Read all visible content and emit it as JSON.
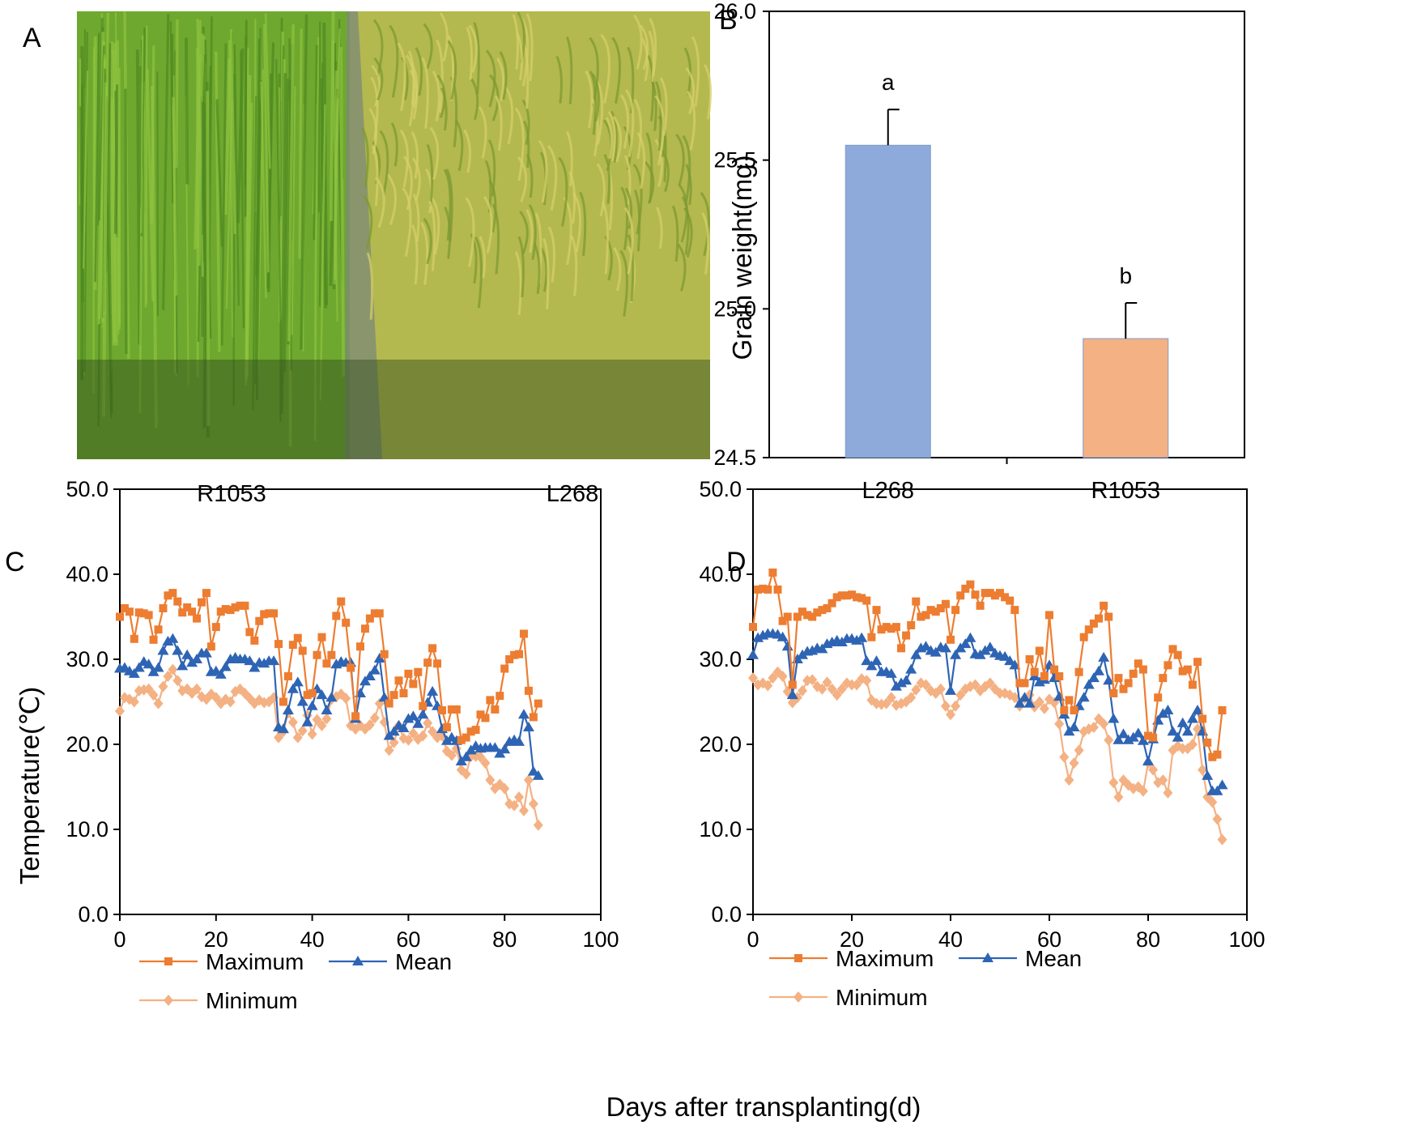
{
  "panels": {
    "a": {
      "label": "A",
      "caption": "Photograph of two rice plots in a paddy field; left plot bright green, right plot yellow-green with drooping panicles",
      "left_label": "R1053",
      "right_label": "L268",
      "colors": {
        "left": "#6ea82e",
        "right": "#b3b94e",
        "channel": "#7e8a78"
      }
    },
    "b": {
      "label": "B"
    },
    "c": {
      "label": "C"
    },
    "d": {
      "label": "D"
    }
  },
  "shared": {
    "xlabel": "Days after transplanting(d)"
  },
  "chart_data": [
    {
      "id": "B",
      "type": "bar",
      "title": "",
      "ylabel": "Grain weight(mg)",
      "xlabel": "",
      "categories": [
        "L268",
        "R1053"
      ],
      "values": [
        25.55,
        24.9
      ],
      "errors": [
        0.12,
        0.12
      ],
      "significance": [
        "a",
        "b"
      ],
      "colors": [
        "#8eaadb",
        "#f4b183"
      ],
      "ylim": [
        24.5,
        26.0
      ],
      "yticks": [
        "24.5",
        "25.0",
        "25.5",
        "26.0"
      ],
      "yticks_values": [
        24.5,
        25.0,
        25.5,
        26.0
      ]
    },
    {
      "id": "C",
      "type": "line",
      "ylabel": "Temperature(℃)",
      "xlabel": "Days after transplanting(d)",
      "xlim": [
        0,
        100
      ],
      "ylim": [
        0,
        50
      ],
      "xticks": [
        "0",
        "20",
        "40",
        "60",
        "80",
        "100"
      ],
      "xticks_values": [
        0,
        20,
        40,
        60,
        80,
        100
      ],
      "yticks": [
        "0.0",
        "10.0",
        "20.0",
        "30.0",
        "40.0",
        "50.0"
      ],
      "yticks_values": [
        0,
        10,
        20,
        30,
        40,
        50
      ],
      "legend": [
        "Maximum",
        "Mean",
        "Minimum"
      ],
      "series": [
        {
          "name": "Maximum",
          "color": "#ed7d31",
          "marker": "square",
          "values": [
            35.0,
            36.0,
            35.6,
            32.4,
            35.5,
            35.4,
            35.2,
            32.3,
            33.5,
            36.0,
            37.5,
            37.8,
            36.8,
            35.5,
            36.1,
            35.6,
            34.8,
            36.7,
            37.8,
            31.5,
            33.8,
            35.6,
            35.9,
            35.8,
            36.1,
            36.3,
            36.3,
            33.2,
            32.2,
            34.5,
            35.3,
            35.4,
            35.4,
            31.8,
            25.0,
            28.0,
            31.7,
            32.5,
            31.0,
            25.8,
            26.0,
            30.5,
            32.6,
            29.5,
            30.5,
            35.1,
            36.8,
            34.3,
            29.0,
            23.3,
            31.5,
            33.6,
            34.8,
            35.4,
            35.4,
            30.6,
            24.8,
            25.8,
            27.5,
            26.0,
            28.3,
            27.1,
            28.5,
            24.5,
            29.6,
            31.3,
            29.5,
            24.0,
            22.0,
            24.1,
            24.1,
            20.5,
            20.8,
            21.5,
            21.7,
            23.5,
            23.1,
            25.2,
            24.1,
            25.7,
            28.9,
            30.0,
            30.5,
            30.6,
            33.0,
            26.3,
            23.2,
            24.8
          ]
        },
        {
          "name": "Mean",
          "color": "#2e64b4",
          "marker": "triangle",
          "values": [
            28.9,
            29.0,
            28.6,
            28.3,
            29.0,
            29.7,
            29.4,
            28.5,
            29.0,
            31.0,
            32.1,
            32.4,
            31.0,
            29.2,
            30.5,
            29.6,
            30.0,
            30.7,
            30.7,
            28.5,
            28.6,
            28.2,
            29.1,
            30.0,
            30.2,
            30.0,
            30.0,
            29.8,
            29.0,
            29.6,
            29.5,
            29.8,
            29.8,
            22.0,
            21.8,
            24.0,
            26.5,
            27.3,
            25.0,
            22.6,
            24.5,
            26.5,
            25.8,
            24.0,
            25.5,
            29.4,
            29.7,
            29.6,
            29.6,
            23.0,
            26.0,
            27.4,
            28.0,
            28.7,
            30.1,
            25.5,
            21.0,
            21.5,
            22.2,
            21.9,
            23.0,
            23.3,
            22.4,
            23.5,
            24.9,
            26.2,
            24.5,
            21.8,
            20.4,
            20.8,
            20.4,
            18.0,
            18.5,
            19.3,
            19.8,
            19.5,
            19.6,
            19.6,
            19.6,
            18.9,
            19.4,
            20.3,
            20.5,
            20.3,
            23.5,
            22.0,
            16.8,
            16.3
          ]
        },
        {
          "name": "Minimum",
          "color": "#f4b183",
          "marker": "diamond",
          "values": [
            23.9,
            25.5,
            25.3,
            25.0,
            26.3,
            26.4,
            26.5,
            25.8,
            24.8,
            26.8,
            28.0,
            28.8,
            27.5,
            26.3,
            26.5,
            26.0,
            26.5,
            25.6,
            25.3,
            25.9,
            25.5,
            24.8,
            25.3,
            25.0,
            26.2,
            26.5,
            26.0,
            25.4,
            24.8,
            25.2,
            24.9,
            25.0,
            25.5,
            20.8,
            21.5,
            23.7,
            22.6,
            20.8,
            21.6,
            23.4,
            21.2,
            22.9,
            22.2,
            23.0,
            25.3,
            25.6,
            25.9,
            25.4,
            22.2,
            21.8,
            22.2,
            21.8,
            22.3,
            23.1,
            24.8,
            22.6,
            19.3,
            20.2,
            22.2,
            20.7,
            20.5,
            21.3,
            20.6,
            21.0,
            22.5,
            21.5,
            20.8,
            21.0,
            19.2,
            18.7,
            19.5,
            17.0,
            16.5,
            18.6,
            18.6,
            18.5,
            17.8,
            15.8,
            14.8,
            15.3,
            14.8,
            13.0,
            12.8,
            13.8,
            12.2,
            15.8,
            13.0,
            10.5
          ]
        }
      ]
    },
    {
      "id": "D",
      "type": "line",
      "ylabel": "",
      "xlabel": "Days after transplanting(d)",
      "xlim": [
        0,
        100
      ],
      "ylim": [
        0,
        50
      ],
      "xticks": [
        "0",
        "20",
        "40",
        "60",
        "80",
        "100"
      ],
      "xticks_values": [
        0,
        20,
        40,
        60,
        80,
        100
      ],
      "yticks": [
        "0.0",
        "10.0",
        "20.0",
        "30.0",
        "40.0",
        "50.0"
      ],
      "yticks_values": [
        0,
        10,
        20,
        30,
        40,
        50
      ],
      "legend": [
        "Maximum",
        "Mean",
        "Minimum"
      ],
      "series": [
        {
          "name": "Maximum",
          "color": "#ed7d31",
          "marker": "square",
          "values": [
            33.8,
            38.2,
            38.3,
            38.2,
            40.2,
            38.2,
            34.5,
            35.0,
            27.0,
            35.0,
            35.6,
            35.2,
            35.0,
            35.5,
            35.8,
            36.0,
            36.6,
            37.3,
            37.5,
            37.5,
            37.6,
            37.3,
            37.2,
            36.9,
            32.6,
            35.8,
            33.5,
            33.8,
            33.6,
            33.8,
            31.3,
            32.8,
            34.0,
            36.8,
            35.0,
            35.2,
            35.8,
            35.6,
            36.0,
            36.5,
            32.3,
            35.8,
            37.5,
            38.3,
            38.8,
            37.6,
            36.3,
            37.8,
            37.8,
            37.5,
            37.8,
            37.3,
            36.9,
            35.8,
            27.2,
            27.2,
            30.0,
            28.5,
            31.0,
            28.0,
            35.2,
            28.8,
            28.0,
            24.0,
            25.2,
            24.0,
            28.5,
            32.6,
            33.5,
            34.2,
            34.8,
            36.3,
            35.0,
            26.0,
            27.8,
            26.5,
            27.2,
            28.3,
            29.5,
            28.8,
            21.0,
            20.8,
            25.5,
            27.8,
            29.3,
            31.2,
            30.5,
            28.6,
            28.8,
            27.0,
            29.7,
            23.0,
            20.2,
            18.5,
            18.8,
            24.0
          ]
        },
        {
          "name": "Mean",
          "color": "#2e64b4",
          "marker": "triangle",
          "values": [
            30.5,
            32.5,
            32.8,
            33.0,
            33.0,
            32.9,
            32.6,
            31.5,
            25.8,
            30.0,
            30.5,
            30.9,
            31.0,
            31.3,
            31.2,
            31.8,
            32.0,
            32.2,
            32.0,
            32.4,
            32.4,
            32.2,
            32.5,
            29.8,
            29.2,
            29.8,
            28.5,
            28.5,
            28.3,
            26.8,
            27.2,
            27.5,
            28.8,
            30.5,
            31.3,
            31.5,
            31.0,
            30.8,
            31.4,
            31.3,
            26.3,
            30.5,
            31.3,
            31.8,
            32.5,
            30.6,
            30.5,
            31.0,
            31.4,
            30.7,
            30.4,
            30.3,
            29.8,
            29.3,
            24.8,
            25.5,
            24.8,
            28.0,
            27.3,
            27.6,
            29.3,
            27.8,
            25.6,
            23.5,
            21.5,
            22.0,
            24.5,
            25.5,
            27.0,
            27.8,
            28.6,
            30.2,
            27.5,
            23.0,
            20.5,
            21.2,
            20.5,
            20.8,
            21.3,
            20.4,
            18.0,
            20.6,
            22.8,
            23.6,
            24.0,
            21.5,
            20.8,
            22.5,
            21.5,
            23.0,
            24.0,
            21.5,
            16.3,
            14.5,
            14.5,
            15.2
          ]
        },
        {
          "name": "Minimum",
          "color": "#f4b183",
          "marker": "diamond",
          "values": [
            27.8,
            27.0,
            27.2,
            26.9,
            27.8,
            28.5,
            28.0,
            26.2,
            24.9,
            25.5,
            26.3,
            27.5,
            27.6,
            26.8,
            26.5,
            27.3,
            26.5,
            25.8,
            26.5,
            27.2,
            27.0,
            27.0,
            27.7,
            27.5,
            25.2,
            24.8,
            24.7,
            24.8,
            25.5,
            24.6,
            24.8,
            25.0,
            25.5,
            26.4,
            27.2,
            27.0,
            26.3,
            26.0,
            26.5,
            24.5,
            23.5,
            24.5,
            25.8,
            26.5,
            26.8,
            27.0,
            26.3,
            26.8,
            27.2,
            26.5,
            26.0,
            26.0,
            25.8,
            25.5,
            24.5,
            25.4,
            25.8,
            24.4,
            25.0,
            24.2,
            25.3,
            24.9,
            22.4,
            18.5,
            15.8,
            17.8,
            19.3,
            21.5,
            21.8,
            22.0,
            23.0,
            22.4,
            20.5,
            15.5,
            13.8,
            15.8,
            15.2,
            14.8,
            15.0,
            14.5,
            17.8,
            17.0,
            15.5,
            15.8,
            14.3,
            19.3,
            19.8,
            19.5,
            19.5,
            20.0,
            21.8,
            17.0,
            13.8,
            13.2,
            11.2,
            8.8
          ]
        }
      ]
    }
  ]
}
